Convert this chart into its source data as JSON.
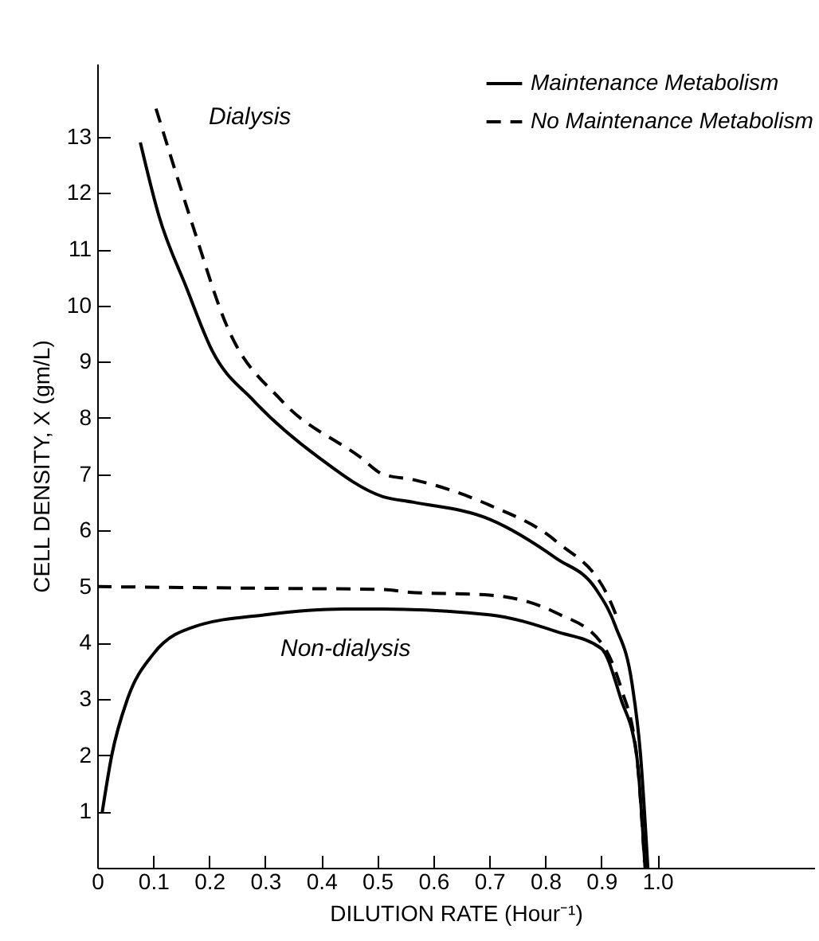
{
  "chart_data": {
    "type": "line",
    "xlabel": "DILUTION RATE (Hour⁻¹)",
    "ylabel": "CELL DENSITY, X (gm/L)",
    "xlim": [
      0,
      1.28
    ],
    "ylim": [
      0,
      14.3
    ],
    "xticks": [
      0,
      0.1,
      0.2,
      0.3,
      0.4,
      0.5,
      0.6,
      0.7,
      0.8,
      0.9,
      {
        "value": 1,
        "label": "1.0"
      }
    ],
    "yticks": [
      1,
      2,
      3,
      4,
      5,
      6,
      7,
      8,
      9,
      10,
      11,
      12,
      13
    ],
    "grid": false,
    "legend": "top right",
    "series": [
      {
        "name": "Maintenance Metabolism",
        "color": "#000000",
        "line_style": "solid",
        "x": [
          0.077,
          0.11,
          0.16,
          0.205,
          0.28,
          0.395,
          0.51,
          0.565,
          0.7,
          0.82,
          0.89,
          0.925,
          0.955,
          0.97,
          0.983
        ],
        "values": [
          12.9,
          11.6,
          10.3,
          9.2,
          8.3,
          7.3,
          6.6,
          6.5,
          6.2,
          5.5,
          4.96,
          4.3,
          3.26,
          2.0,
          0.0
        ]
      },
      {
        "name": "No Maintenance Metabolism",
        "color": "#000000",
        "line_style": "dashed",
        "x": [
          0.105,
          0.168,
          0.233,
          0.33,
          0.47,
          0.51,
          0.565,
          0.7,
          0.82,
          0.915,
          0.93
        ],
        "values": [
          13.5,
          11.5,
          9.6,
          8.3,
          7.3,
          7.0,
          6.9,
          6.45,
          5.8,
          4.76,
          4.4
        ]
      },
      {
        "color": "#000000",
        "line_style": "solid",
        "x": [
          0.009,
          0.026,
          0.054,
          0.1,
          0.177,
          0.3,
          0.44,
          0.51,
          0.7,
          0.82,
          0.9,
          0.935,
          0.963,
          0.978
        ],
        "values": [
          0.99,
          2.0,
          3.0,
          3.8,
          4.3,
          4.5,
          4.6,
          4.6,
          4.5,
          4.2,
          3.9,
          3.0,
          2.0,
          0.0
        ]
      },
      {
        "color": "#000000",
        "line_style": "dashed",
        "x": [
          0.0,
          0.3,
          0.51,
          0.557,
          0.7,
          0.82,
          0.9,
          0.935,
          0.963,
          0.977
        ],
        "values": [
          5.0,
          4.97,
          4.95,
          4.9,
          4.85,
          4.53,
          4.0,
          3.2,
          2.0,
          0.1
        ]
      }
    ],
    "annotations": [
      "Dialysis",
      "Non-dialysis"
    ]
  }
}
